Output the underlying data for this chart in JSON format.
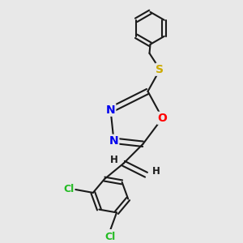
{
  "bg_color": "#e8e8e8",
  "bond_color": "#1a1a1a",
  "bond_width": 1.5,
  "atom_colors": {
    "N": "#0000ee",
    "O": "#ff0000",
    "S": "#ccaa00",
    "Cl": "#22bb22",
    "C": "#1a1a1a",
    "H": "#1a1a1a"
  },
  "font_size_atom": 10,
  "font_size_small": 8.5,
  "font_size_cl": 9
}
